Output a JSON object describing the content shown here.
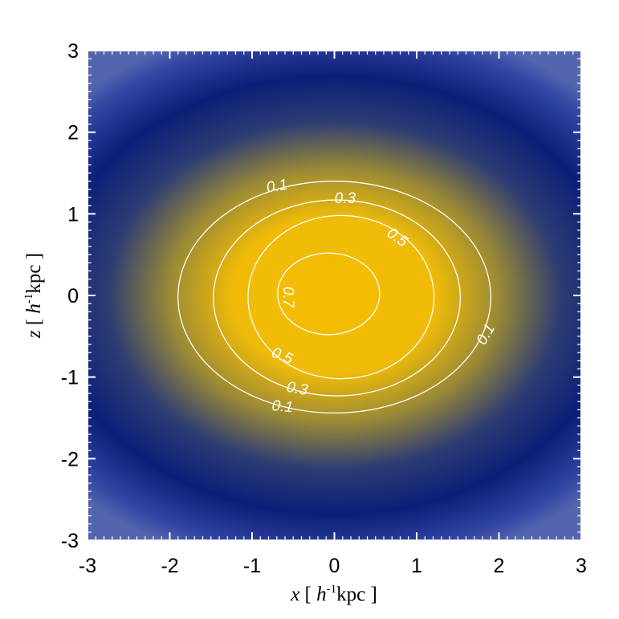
{
  "chart_data": {
    "type": "heatmap",
    "title": "",
    "xlabel": {
      "var": "x",
      "open": " [ ",
      "unit_base": "h",
      "unit_exp": "-1",
      "unit_rest": "kpc",
      "close": " ]"
    },
    "ylabel": {
      "var": "z",
      "open": " [ ",
      "unit_base": "h",
      "unit_exp": "-1",
      "unit_rest": "kpc",
      "close": " ]"
    },
    "xlim": [
      -3,
      3
    ],
    "ylim": [
      -3,
      3
    ],
    "x_ticks": [
      -3,
      -2,
      -1,
      0,
      1,
      2,
      3
    ],
    "y_ticks": [
      -3,
      -2,
      -1,
      0,
      1,
      2,
      3
    ],
    "x_tick_labels": [
      "-3",
      "-2",
      "-1",
      "0",
      "1",
      "2",
      "3"
    ],
    "y_tick_labels": [
      "-3",
      "-2",
      "-1",
      "0",
      "1",
      "2",
      "3"
    ],
    "colormap": {
      "high": "#f4be00",
      "mid": "#0b1f78",
      "low": "#5566b0"
    },
    "contours": [
      {
        "level": 0.1,
        "label": "0.1",
        "center": [
          0.0,
          -0.02
        ],
        "semi_x": 1.9,
        "semi_z": 1.42
      },
      {
        "level": 0.3,
        "label": "0.3",
        "center": [
          0.03,
          -0.03
        ],
        "semi_x": 1.5,
        "semi_z": 1.2
      },
      {
        "level": 0.5,
        "label": "0.5",
        "center": [
          0.08,
          -0.02
        ],
        "semi_x": 1.13,
        "semi_z": 1.0
      },
      {
        "level": 0.7,
        "label": "0.7",
        "center": [
          -0.07,
          0.02
        ],
        "semi_x": 0.62,
        "semi_z": 0.5
      }
    ],
    "contour_labels": [
      {
        "text": "0.1",
        "x": -0.7,
        "z": 1.35,
        "rotate": -10
      },
      {
        "text": "0.3",
        "x": 0.13,
        "z": 1.2,
        "rotate": 0
      },
      {
        "text": "0.5",
        "x": 0.77,
        "z": 0.72,
        "rotate": 35
      },
      {
        "text": "0.7",
        "x": -0.55,
        "z": -0.02,
        "rotate": 90
      },
      {
        "text": "0.5",
        "x": -0.63,
        "z": -0.73,
        "rotate": 22
      },
      {
        "text": "0.3",
        "x": -0.45,
        "z": -1.13,
        "rotate": 10
      },
      {
        "text": "0.1",
        "x": -0.63,
        "z": -1.35,
        "rotate": 5
      },
      {
        "text": "0.1",
        "x": 1.83,
        "z": -0.47,
        "rotate": -60
      }
    ]
  }
}
